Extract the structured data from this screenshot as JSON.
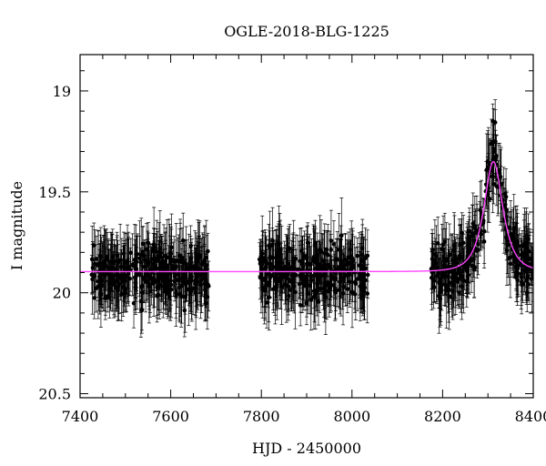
{
  "chart_data": {
    "type": "scatter",
    "title": "OGLE-2018-BLG-1225",
    "xlabel": "HJD - 2450000",
    "ylabel": "I magnitude",
    "xlim": [
      7400,
      8400
    ],
    "ylim": [
      20.52,
      18.82
    ],
    "y_inverted": true,
    "x_ticks": [
      7400,
      7600,
      7800,
      8000,
      8200,
      8400
    ],
    "x_tick_labels": [
      "7400",
      "7600",
      "7800",
      "8000",
      "8200",
      "8400"
    ],
    "y_ticks": [
      19,
      19.5,
      20,
      20.5
    ],
    "y_tick_labels": [
      "19",
      "19.5",
      "20",
      "20.5"
    ],
    "grid": false,
    "series": [
      {
        "type": "scatter",
        "marker": "filled-circle",
        "color": "#000000",
        "error_bars": true,
        "seasons": [
          {
            "x_range": [
              7425,
              7685
            ],
            "baseline": 19.9
          },
          {
            "x_range": [
              7795,
              8035
            ],
            "baseline": 19.9
          },
          {
            "x_range": [
              8175,
              8405
            ],
            "baseline": 19.9
          }
        ]
      },
      {
        "type": "line",
        "color": "#ff44ff",
        "model": "point-lens",
        "baseline": 19.895,
        "peak_x": 8312,
        "peak_y": 19.35,
        "timescale": 30
      }
    ]
  }
}
